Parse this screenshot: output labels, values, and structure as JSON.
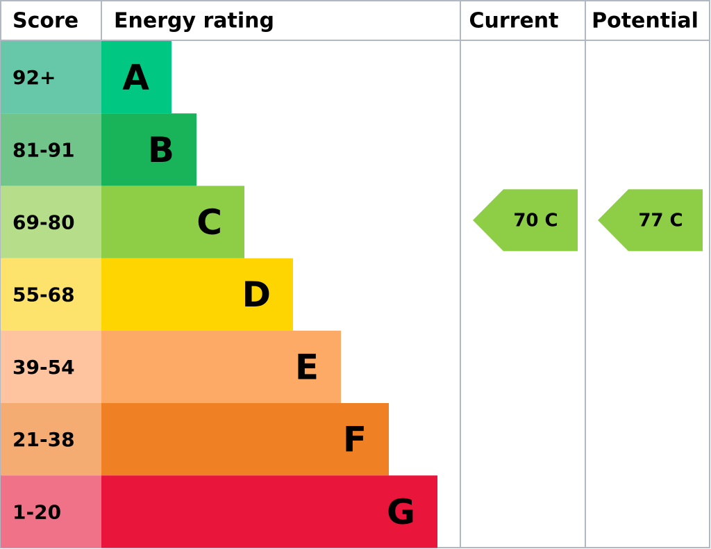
{
  "header": {
    "score": "Score",
    "rating": "Energy rating",
    "current": "Current",
    "potential": "Potential"
  },
  "bands": [
    {
      "score": "92+",
      "letter": "A",
      "color": "#00c781",
      "score_color": "#66c8a8"
    },
    {
      "score": "81-91",
      "letter": "B",
      "color": "#19b459",
      "score_color": "#72c58a"
    },
    {
      "score": "69-80",
      "letter": "C",
      "color": "#8dce46",
      "score_color": "#b6de8a"
    },
    {
      "score": "55-68",
      "letter": "D",
      "color": "#ffd500",
      "score_color": "#fde36b"
    },
    {
      "score": "39-54",
      "letter": "E",
      "color": "#fcaa65",
      "score_color": "#fdc49f"
    },
    {
      "score": "21-38",
      "letter": "F",
      "color": "#ef8023",
      "score_color": "#f4ac73"
    },
    {
      "score": "1-20",
      "letter": "G",
      "color": "#e9153b",
      "score_color": "#f07289"
    }
  ],
  "current": {
    "label": "70 C"
  },
  "potential": {
    "label": "77 C"
  }
}
